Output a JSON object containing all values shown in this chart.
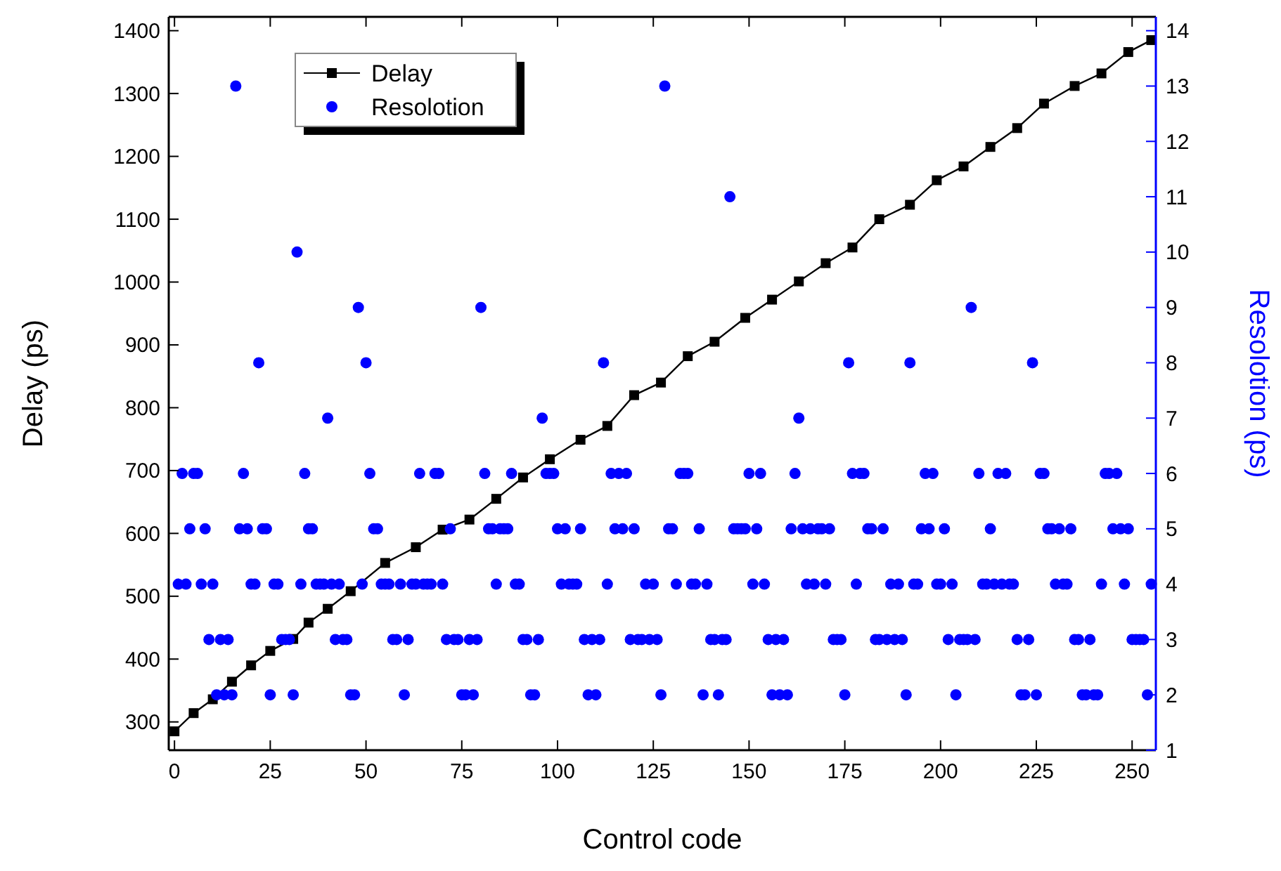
{
  "chart_data": {
    "type": "line",
    "xlabel": "Control code",
    "ylabel": "Delay (ps)",
    "y2label": "Resolotion (ps)",
    "xlim": [
      -1.5,
      256.2
    ],
    "xticks": [
      0,
      25,
      50,
      75,
      100,
      125,
      150,
      175,
      200,
      225,
      250
    ],
    "ylim": [
      255,
      1422
    ],
    "yticks": [
      300,
      400,
      500,
      600,
      700,
      800,
      900,
      1000,
      1100,
      1200,
      1300,
      1400
    ],
    "y2lim": [
      1,
      14.25
    ],
    "y2ticks": [
      1,
      2,
      3,
      4,
      5,
      6,
      7,
      8,
      9,
      10,
      11,
      12,
      13,
      14
    ],
    "legend": "top left",
    "series": [
      {
        "name": "Delay",
        "color": "#000000",
        "marker": "square",
        "line_style": "solid",
        "x": [
          0,
          5,
          10,
          15,
          20,
          25,
          31,
          35,
          40,
          46,
          55,
          63,
          70,
          77,
          84,
          91,
          98,
          106,
          113,
          120,
          127,
          134,
          141,
          149,
          156,
          163,
          170,
          177,
          184,
          192,
          199,
          206,
          213,
          220,
          227,
          235,
          242,
          249,
          255
        ],
        "values": [
          285,
          314,
          336,
          364,
          390,
          413,
          432,
          458,
          480,
          508,
          553,
          578,
          606,
          622,
          655,
          689,
          718,
          749,
          771,
          820,
          840,
          882,
          905,
          943,
          972,
          1001,
          1030,
          1055,
          1100,
          1123,
          1162,
          1184,
          1215,
          1245,
          1284,
          1312,
          1332,
          1366,
          1385
        ]
      },
      {
        "name": "Resolotion",
        "type": "scatter",
        "axis": "y2",
        "color": "#0000ff",
        "marker": "circle",
        "x": [
          1,
          2,
          3,
          4,
          5,
          6,
          7,
          8,
          9,
          10,
          11,
          12,
          13,
          14,
          15,
          16,
          17,
          18,
          19,
          20,
          21,
          22,
          23,
          24,
          25,
          26,
          27,
          28,
          29,
          30,
          31,
          32,
          33,
          34,
          35,
          36,
          37,
          38,
          39,
          40,
          41,
          42,
          43,
          44,
          45,
          46,
          47,
          48,
          49,
          50,
          51,
          52,
          53,
          54,
          55,
          56,
          57,
          58,
          59,
          60,
          61,
          62,
          63,
          64,
          65,
          66,
          67,
          68,
          69,
          70,
          71,
          72,
          73,
          74,
          75,
          76,
          77,
          78,
          79,
          80,
          81,
          82,
          83,
          84,
          85,
          86,
          87,
          88,
          89,
          90,
          91,
          92,
          93,
          94,
          95,
          96,
          97,
          98,
          99,
          100,
          101,
          102,
          103,
          104,
          105,
          106,
          107,
          108,
          109,
          110,
          111,
          112,
          113,
          114,
          115,
          116,
          117,
          118,
          119,
          120,
          121,
          122,
          123,
          124,
          125,
          126,
          127,
          128,
          129,
          130,
          131,
          132,
          133,
          134,
          135,
          136,
          137,
          138,
          139,
          140,
          141,
          142,
          143,
          144,
          145,
          146,
          147,
          148,
          149,
          150,
          151,
          152,
          153,
          154,
          155,
          156,
          157,
          158,
          159,
          160,
          161,
          162,
          163,
          164,
          165,
          166,
          167,
          168,
          169,
          170,
          171,
          172,
          173,
          174,
          175,
          176,
          177,
          178,
          179,
          180,
          181,
          182,
          183,
          184,
          185,
          186,
          187,
          188,
          189,
          190,
          191,
          192,
          193,
          194,
          195,
          196,
          197,
          198,
          199,
          200,
          201,
          202,
          203,
          204,
          205,
          206,
          207,
          208,
          209,
          210,
          211,
          212,
          213,
          214,
          215,
          216,
          217,
          218,
          219,
          220,
          221,
          222,
          223,
          224,
          225,
          226,
          227,
          228,
          229,
          230,
          231,
          232,
          233,
          234,
          235,
          236,
          237,
          238,
          239,
          240,
          241,
          242,
          243,
          244,
          245,
          246,
          247,
          248,
          249,
          250,
          251,
          252,
          253,
          254,
          255
        ],
        "values": [
          4,
          6,
          4,
          5,
          6,
          6,
          4,
          5,
          3,
          4,
          2,
          3,
          2,
          3,
          2,
          13,
          5,
          6,
          5,
          4,
          4,
          8,
          5,
          5,
          2,
          4,
          4,
          3,
          3,
          3,
          2,
          10,
          4,
          6,
          5,
          5,
          4,
          4,
          4,
          7,
          4,
          3,
          4,
          3,
          3,
          2,
          2,
          9,
          4,
          8,
          6,
          5,
          5,
          4,
          4,
          4,
          3,
          3,
          4,
          2,
          3,
          4,
          4,
          6,
          4,
          4,
          4,
          6,
          6,
          4,
          3,
          5,
          3,
          3,
          2,
          2,
          3,
          2,
          3,
          9,
          6,
          5,
          5,
          4,
          5,
          5,
          5,
          6,
          4,
          4,
          3,
          3,
          2,
          2,
          3,
          7,
          6,
          6,
          6,
          5,
          4,
          5,
          4,
          4,
          4,
          5,
          3,
          2,
          3,
          2,
          3,
          8,
          4,
          6,
          5,
          6,
          5,
          6,
          3,
          5,
          3,
          3,
          4,
          3,
          4,
          3,
          2,
          13,
          5,
          5,
          4,
          6,
          6,
          6,
          4,
          4,
          5,
          2,
          4,
          3,
          3,
          2,
          3,
          3,
          11,
          5,
          5,
          5,
          5,
          6,
          4,
          5,
          6,
          4,
          3,
          2,
          3,
          2,
          3,
          2,
          5,
          6,
          7,
          5,
          4,
          5,
          4,
          5,
          5,
          4,
          5,
          3,
          3,
          3,
          2,
          8,
          6,
          4,
          6,
          6,
          5,
          5,
          3,
          3,
          5,
          3,
          4,
          3,
          4,
          3,
          2,
          8,
          4,
          4,
          5,
          6,
          5,
          6,
          4,
          4,
          5,
          3,
          4,
          2,
          3,
          3,
          3,
          9,
          3,
          6,
          4,
          4,
          5,
          4,
          6,
          4,
          6,
          4,
          4,
          3,
          2,
          2,
          3,
          8,
          2,
          6,
          6,
          5,
          5,
          4,
          5,
          4,
          4,
          5,
          3,
          3,
          2,
          2,
          3,
          2,
          2,
          4,
          6,
          6,
          5,
          6,
          5,
          4,
          5,
          3,
          3,
          3,
          3,
          2,
          4
        ]
      }
    ]
  }
}
